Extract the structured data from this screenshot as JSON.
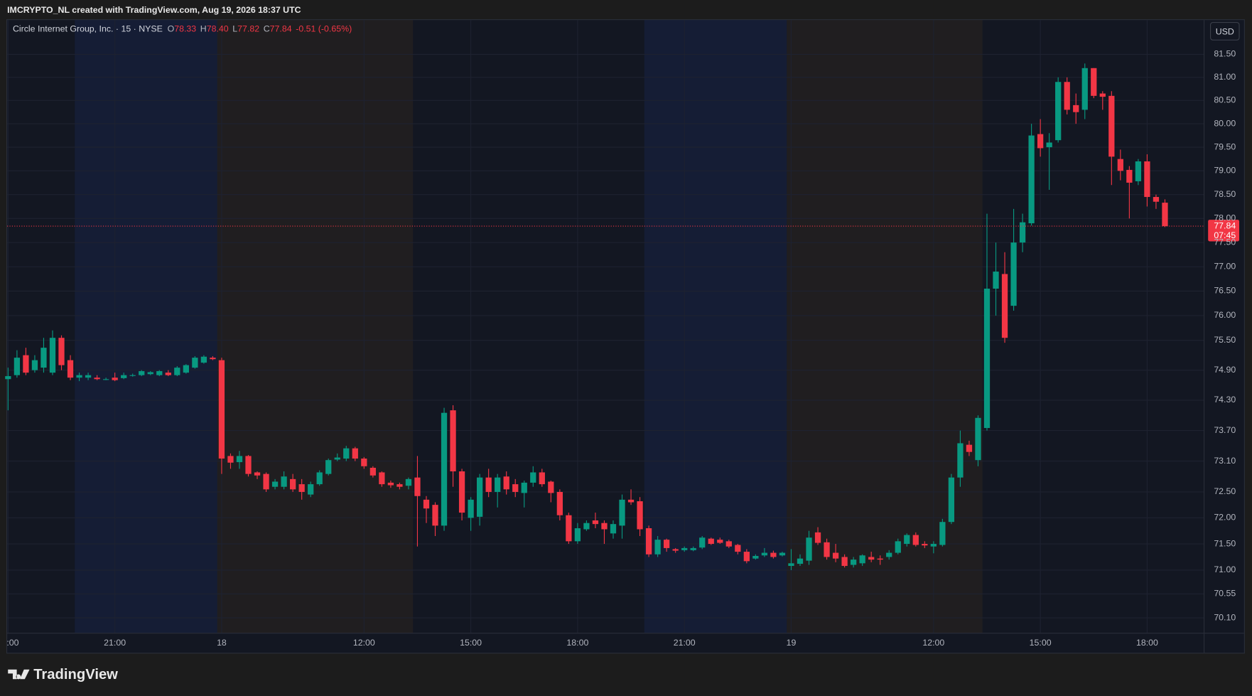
{
  "header": "IMCRYPTO_NL created with TradingView.com, Aug 19, 2026 18:37 UTC",
  "branding": "TradingView",
  "chart_data": {
    "type": "candlestick",
    "title": "Circle Internet Group, Inc. · 15 · NYSE",
    "ohlc_legend": [
      {
        "label": "O",
        "value": "78.33"
      },
      {
        "label": "H",
        "value": "78.40"
      },
      {
        "label": "L",
        "value": "77.82"
      },
      {
        "label": "C",
        "value": "77.84"
      }
    ],
    "change": "-0.51 (-0.65%)",
    "currency": "USD",
    "last_price": 77.84,
    "countdown": "07:45",
    "up_color": "#089981",
    "down_color": "#f23645",
    "log_scale": true,
    "grid": true,
    "ylim": [
      69.82,
      82.25
    ],
    "yticks": [
      {
        "value": 81.5,
        "label": "81.50"
      },
      {
        "value": 81,
        "label": "81.00"
      },
      {
        "value": 80.5,
        "label": "80.50"
      },
      {
        "value": 80,
        "label": "80.00"
      },
      {
        "value": 79.5,
        "label": "79.50"
      },
      {
        "value": 79,
        "label": "79.00"
      },
      {
        "value": 78.5,
        "label": "78.50"
      },
      {
        "value": 78,
        "label": "78.00"
      },
      {
        "value": 77.5,
        "label": "77.50"
      },
      {
        "value": 77,
        "label": "77.00"
      },
      {
        "value": 76.5,
        "label": "76.50"
      },
      {
        "value": 76,
        "label": "76.00"
      },
      {
        "value": 75.5,
        "label": "75.50"
      },
      {
        "value": 74.9,
        "label": "74.90"
      },
      {
        "value": 74.3,
        "label": "74.30"
      },
      {
        "value": 73.7,
        "label": "73.70"
      },
      {
        "value": 73.1,
        "label": "73.10"
      },
      {
        "value": 72.5,
        "label": "72.50"
      },
      {
        "value": 72,
        "label": "72.00"
      },
      {
        "value": 71.5,
        "label": "71.50"
      },
      {
        "value": 71,
        "label": "71.00"
      },
      {
        "value": 70.55,
        "label": "70.55"
      },
      {
        "value": 70.1,
        "label": "70.10"
      }
    ],
    "xlim": [
      -0.1,
      134.4
    ],
    "xticks": [
      {
        "value": 0,
        "label": ":00"
      },
      {
        "value": 12,
        "label": "21:00"
      },
      {
        "value": 24,
        "label": "18"
      },
      {
        "value": 40,
        "label": "12:00"
      },
      {
        "value": 52,
        "label": "15:00"
      },
      {
        "value": 64,
        "label": "18:00"
      },
      {
        "value": 76,
        "label": "21:00"
      },
      {
        "value": 88,
        "label": "19"
      },
      {
        "value": 104,
        "label": "12:00"
      },
      {
        "value": 116,
        "label": "15:00"
      },
      {
        "value": 128,
        "label": "18:00"
      }
    ],
    "open": [
      74.72,
      74.8,
      75.2,
      74.9,
      74.95,
      74.85,
      75.55,
      75.1,
      74.75,
      74.75,
      74.75,
      74.72,
      74.75,
      74.74,
      74.8,
      74.8,
      74.82,
      74.8,
      74.85,
      74.8,
      74.85,
      74.95,
      75.05,
      75.15,
      75.1,
      73.2,
      73.08,
      73.2,
      72.88,
      72.85,
      72.6,
      72.6,
      72.75,
      72.65,
      72.45,
      72.65,
      72.85,
      73.13,
      73.15,
      73.35,
      73.15,
      72.97,
      72.88,
      72.68,
      72.65,
      72.62,
      72.78,
      72.35,
      72.25,
      71.85,
      74.1,
      72.9,
      72.0,
      72.02,
      72.78,
      72.5,
      72.8,
      72.65,
      72.48,
      72.68,
      72.88,
      72.7,
      72.5,
      72.05,
      71.55,
      71.78,
      71.95,
      71.9,
      71.7,
      71.85,
      72.35,
      72.32,
      71.8,
      71.3,
      71.58,
      71.4,
      71.38,
      71.38,
      71.43,
      71.6,
      71.58,
      71.55,
      71.48,
      71.35,
      71.22,
      71.28,
      71.33,
      71.28,
      71.08,
      71.12,
      71.18,
      71.72,
      71.53,
      71.33,
      71.25,
      71.1,
      71.13,
      71.25,
      71.22,
      71.25,
      71.33,
      71.5,
      71.67,
      71.5,
      71.45,
      71.48,
      71.92,
      72.78,
      73.42,
      73.12,
      73.75,
      76.55,
      76.85,
      76.2,
      77.5,
      77.9,
      79.78,
      79.5,
      79.65,
      80.9,
      80.4,
      80.3,
      81.2,
      80.65,
      80.6,
      79.25,
      79.02,
      78.78,
      79.2,
      78.45,
      78.33
    ],
    "high": [
      74.95,
      75.3,
      75.35,
      75.2,
      75.55,
      75.7,
      75.6,
      75.2,
      74.85,
      74.85,
      74.8,
      74.75,
      74.85,
      74.85,
      74.83,
      74.9,
      74.88,
      74.9,
      74.9,
      74.98,
      75.02,
      75.18,
      75.2,
      75.18,
      75.15,
      73.25,
      73.3,
      73.22,
      72.9,
      72.88,
      72.75,
      72.9,
      72.85,
      72.75,
      72.7,
      72.92,
      73.15,
      73.25,
      73.4,
      73.38,
      73.18,
      73.0,
      72.9,
      72.72,
      72.68,
      72.78,
      73.2,
      72.42,
      72.3,
      74.15,
      74.2,
      72.95,
      72.4,
      72.85,
      72.95,
      72.85,
      72.9,
      72.75,
      72.72,
      73.0,
      72.95,
      72.72,
      72.55,
      72.1,
      71.9,
      71.95,
      72.1,
      71.95,
      71.95,
      72.45,
      72.55,
      72.4,
      71.85,
      71.65,
      71.6,
      71.42,
      71.45,
      71.45,
      71.65,
      71.62,
      71.62,
      71.58,
      71.5,
      71.4,
      71.3,
      71.42,
      71.37,
      71.35,
      71.4,
      71.3,
      71.75,
      71.82,
      71.6,
      71.5,
      71.3,
      71.25,
      71.3,
      71.35,
      71.28,
      71.38,
      71.6,
      71.7,
      71.72,
      71.55,
      71.55,
      71.98,
      72.85,
      73.7,
      73.5,
      74.0,
      78.1,
      77.5,
      77.3,
      78.2,
      78.1,
      80.0,
      80.1,
      79.8,
      81.0,
      81.0,
      80.65,
      81.3,
      81.2,
      80.7,
      80.7,
      79.45,
      79.1,
      79.25,
      79.35,
      78.5,
      78.4
    ],
    "low": [
      74.1,
      74.75,
      74.8,
      74.85,
      74.85,
      74.8,
      74.9,
      74.7,
      74.68,
      74.7,
      74.7,
      74.7,
      74.68,
      74.72,
      74.77,
      74.78,
      74.8,
      74.78,
      74.78,
      74.78,
      74.83,
      74.93,
      75.03,
      75.1,
      72.85,
      72.95,
      72.95,
      72.8,
      72.75,
      72.5,
      72.55,
      72.55,
      72.5,
      72.35,
      72.4,
      72.62,
      72.82,
      73.1,
      73.1,
      73.1,
      72.95,
      72.78,
      72.6,
      72.58,
      72.55,
      72.55,
      71.45,
      71.9,
      71.65,
      71.75,
      72.6,
      71.95,
      71.75,
      71.85,
      72.4,
      72.2,
      72.45,
      72.4,
      72.2,
      72.6,
      72.6,
      72.3,
      71.95,
      71.5,
      71.5,
      71.75,
      71.8,
      71.5,
      71.6,
      71.6,
      72.25,
      71.65,
      71.25,
      71.25,
      71.35,
      71.33,
      71.35,
      71.36,
      71.4,
      71.48,
      71.5,
      71.42,
      71.3,
      71.13,
      71.2,
      71.25,
      71.22,
      71.26,
      71.0,
      71.08,
      71.1,
      71.48,
      71.2,
      71.15,
      71.05,
      71.05,
      71.08,
      71.15,
      71.1,
      71.2,
      71.3,
      71.45,
      71.45,
      71.42,
      71.32,
      71.45,
      71.88,
      72.6,
      73.2,
      73.0,
      73.7,
      76.0,
      75.45,
      76.1,
      77.3,
      77.85,
      79.3,
      78.6,
      79.6,
      80.2,
      80.0,
      80.1,
      80.55,
      80.3,
      78.7,
      78.8,
      78.0,
      78.7,
      78.25,
      78.2,
      77.82
    ],
    "close": [
      74.78,
      75.15,
      74.85,
      75.1,
      75.35,
      75.55,
      75.0,
      74.75,
      74.8,
      74.8,
      74.72,
      74.72,
      74.7,
      74.8,
      74.8,
      74.88,
      74.86,
      74.88,
      74.8,
      74.95,
      75.0,
      75.15,
      75.17,
      75.12,
      73.15,
      73.07,
      73.2,
      72.85,
      72.82,
      72.55,
      72.7,
      72.8,
      72.55,
      72.5,
      72.65,
      72.88,
      73.12,
      73.17,
      73.35,
      73.15,
      73.0,
      72.82,
      72.65,
      72.63,
      72.6,
      72.75,
      72.42,
      72.18,
      71.85,
      74.05,
      72.9,
      72.1,
      72.35,
      72.78,
      72.5,
      72.78,
      72.55,
      72.5,
      72.68,
      72.88,
      72.65,
      72.48,
      72.05,
      71.55,
      71.8,
      71.9,
      71.88,
      71.78,
      71.88,
      72.35,
      72.3,
      71.78,
      71.3,
      71.58,
      71.42,
      71.37,
      71.42,
      71.42,
      71.62,
      71.5,
      71.52,
      71.45,
      71.35,
      71.17,
      71.27,
      71.33,
      71.25,
      71.33,
      71.13,
      71.22,
      71.62,
      71.52,
      71.25,
      71.22,
      71.08,
      71.2,
      71.28,
      71.2,
      71.2,
      71.33,
      71.55,
      71.67,
      71.48,
      71.47,
      71.5,
      71.92,
      72.78,
      73.45,
      73.28,
      73.95,
      76.55,
      76.9,
      75.55,
      77.5,
      77.92,
      79.75,
      79.48,
      79.6,
      80.9,
      80.3,
      80.25,
      81.2,
      80.6,
      80.58,
      79.3,
      79.0,
      78.75,
      79.2,
      78.45,
      78.35,
      77.84
    ]
  }
}
